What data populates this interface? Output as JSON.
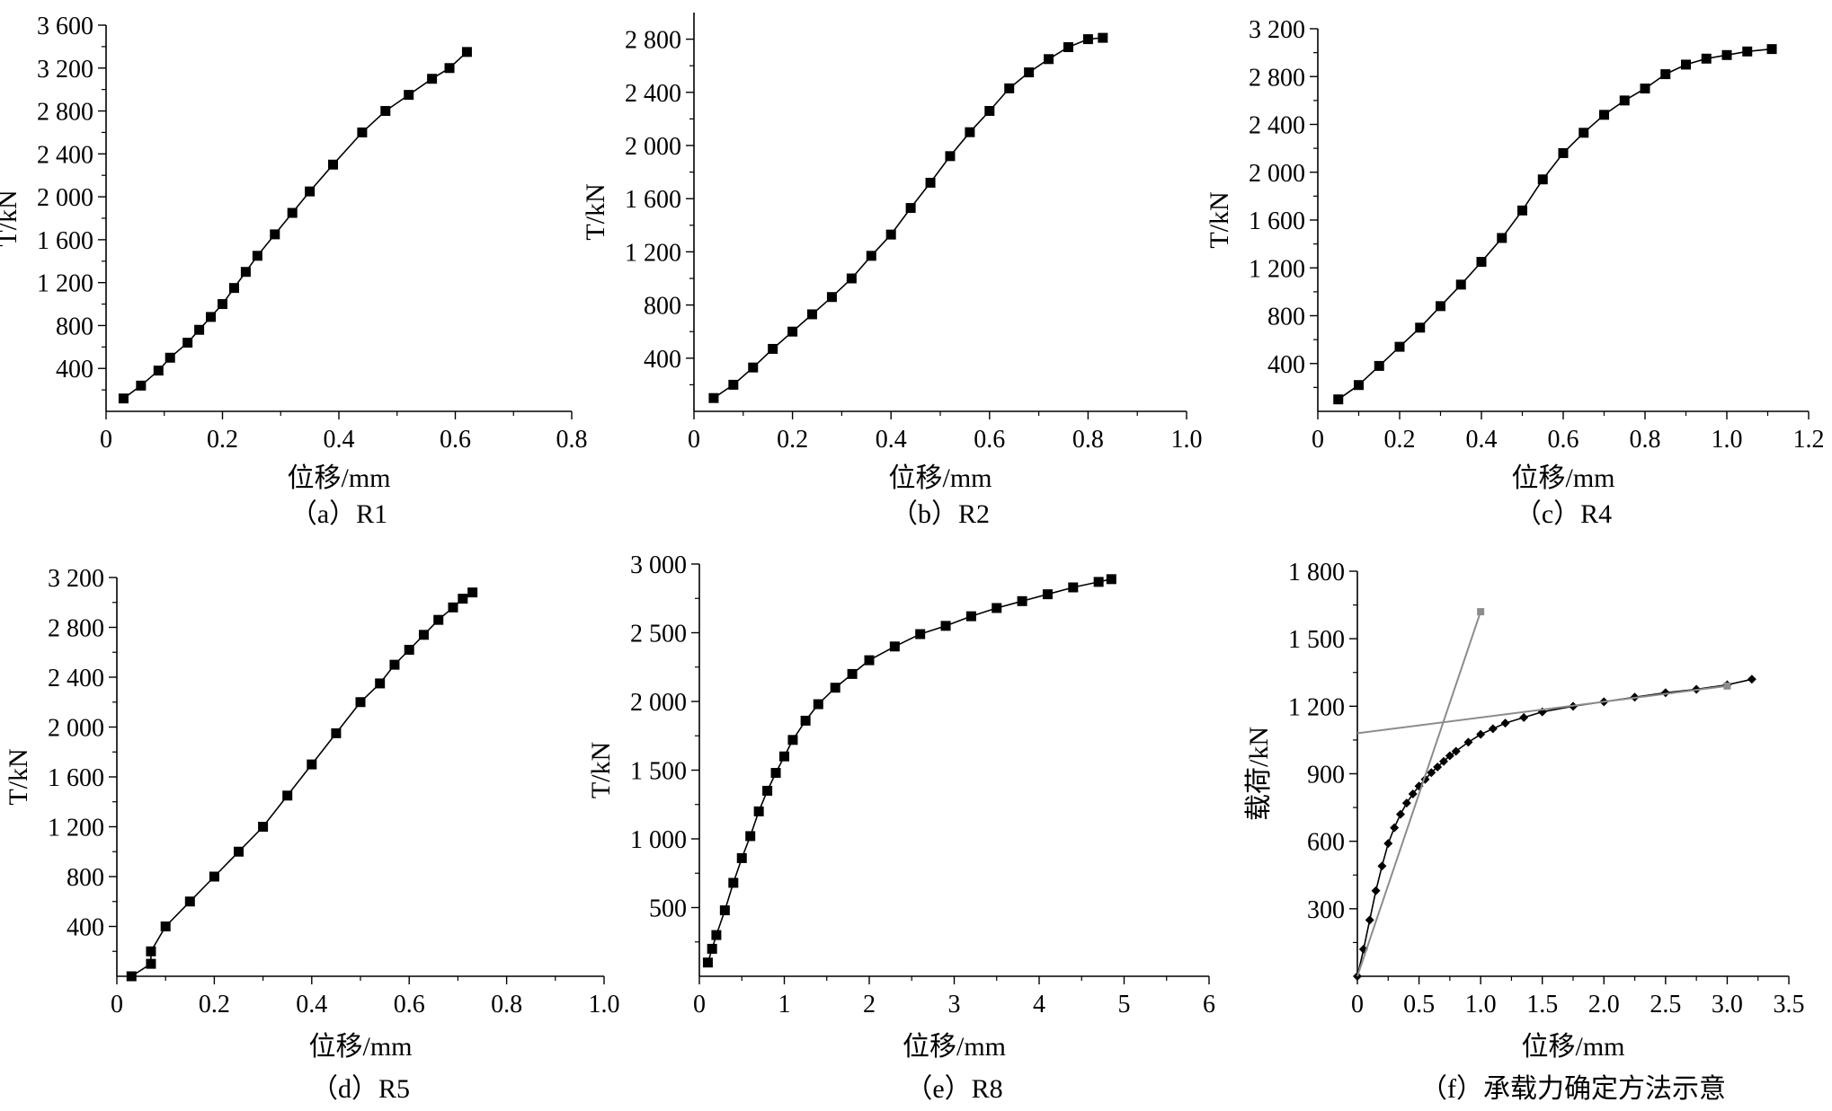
{
  "chart_data": [
    {
      "type": "line",
      "caption": "（a）R1",
      "xlabel": "位移/mm",
      "ylabel": "T/kN",
      "xlim": [
        0,
        0.8
      ],
      "ylim": [
        0,
        3600
      ],
      "xticks": [
        0,
        0.2,
        0.4,
        0.6,
        0.8
      ],
      "xtick_labels": [
        "0",
        "0.2",
        "0.4",
        "0.6",
        "0.8"
      ],
      "yticks": [
        400,
        800,
        1200,
        1600,
        2000,
        2400,
        2800,
        3200,
        3600
      ],
      "ytick_labels": [
        "400",
        "800",
        "1 200",
        "1 600",
        "2 000",
        "2 400",
        "2 800",
        "3 200",
        "3 600"
      ],
      "grid": false,
      "marker": "square",
      "series": [
        {
          "x": [
            0.03,
            0.06,
            0.09,
            0.11,
            0.14,
            0.16,
            0.18,
            0.2,
            0.22,
            0.24,
            0.26,
            0.29,
            0.32,
            0.35,
            0.39,
            0.44,
            0.48,
            0.52,
            0.56,
            0.59,
            0.62
          ],
          "y": [
            120,
            240,
            380,
            500,
            640,
            760,
            880,
            1000,
            1150,
            1300,
            1450,
            1650,
            1850,
            2050,
            2300,
            2600,
            2800,
            2950,
            3100,
            3200,
            3350
          ]
        }
      ]
    },
    {
      "type": "line",
      "caption": "（b）R2",
      "xlabel": "位移/mm",
      "ylabel": "T/kN",
      "xlim": [
        0,
        1.0
      ],
      "ylim": [
        0,
        3000
      ],
      "xticks": [
        0,
        0.2,
        0.4,
        0.6,
        0.8,
        1.0
      ],
      "xtick_labels": [
        "0",
        "0.2",
        "0.4",
        "0.6",
        "0.8",
        "1.0"
      ],
      "yticks": [
        400,
        800,
        1200,
        1600,
        2000,
        2400,
        2800
      ],
      "ytick_labels": [
        "400",
        "800",
        "1 200",
        "1 600",
        "2 000",
        "2 400",
        "2 800"
      ],
      "grid": false,
      "marker": "square",
      "series": [
        {
          "x": [
            0.04,
            0.08,
            0.12,
            0.16,
            0.2,
            0.24,
            0.28,
            0.32,
            0.36,
            0.4,
            0.44,
            0.48,
            0.52,
            0.56,
            0.6,
            0.64,
            0.68,
            0.72,
            0.76,
            0.8,
            0.83
          ],
          "y": [
            100,
            200,
            330,
            470,
            600,
            730,
            860,
            1000,
            1170,
            1330,
            1530,
            1720,
            1920,
            2100,
            2260,
            2430,
            2550,
            2650,
            2740,
            2800,
            2810
          ]
        }
      ]
    },
    {
      "type": "line",
      "caption": "（c）R4",
      "xlabel": "位移/mm",
      "ylabel": "T/kN",
      "xlim": [
        0,
        1.2
      ],
      "ylim": [
        0,
        3200
      ],
      "xticks": [
        0,
        0.2,
        0.4,
        0.6,
        0.8,
        1.0,
        1.2
      ],
      "xtick_labels": [
        "0",
        "0.2",
        "0.4",
        "0.6",
        "0.8",
        "1.0",
        "1.2"
      ],
      "yticks": [
        400,
        800,
        1200,
        1600,
        2000,
        2400,
        2800,
        3200
      ],
      "ytick_labels": [
        "400",
        "800",
        "1 200",
        "1 600",
        "2 000",
        "2 400",
        "2 800",
        "3 200"
      ],
      "grid": false,
      "marker": "square",
      "series": [
        {
          "x": [
            0.05,
            0.1,
            0.15,
            0.2,
            0.25,
            0.3,
            0.35,
            0.4,
            0.45,
            0.5,
            0.55,
            0.6,
            0.65,
            0.7,
            0.75,
            0.8,
            0.85,
            0.9,
            0.95,
            1.0,
            1.05,
            1.11
          ],
          "y": [
            100,
            220,
            380,
            540,
            700,
            880,
            1060,
            1250,
            1450,
            1680,
            1940,
            2160,
            2330,
            2480,
            2600,
            2700,
            2820,
            2900,
            2950,
            2980,
            3010,
            3030
          ]
        }
      ]
    },
    {
      "type": "line",
      "caption": "（d）R5",
      "xlabel": "位移/mm",
      "ylabel": "T/kN",
      "xlim": [
        0,
        1.0
      ],
      "ylim": [
        0,
        3200
      ],
      "xticks": [
        0,
        0.2,
        0.4,
        0.6,
        0.8,
        1.0
      ],
      "xtick_labels": [
        "0",
        "0.2",
        "0.4",
        "0.6",
        "0.8",
        "1.0"
      ],
      "yticks": [
        400,
        800,
        1200,
        1600,
        2000,
        2400,
        2800,
        3200
      ],
      "ytick_labels": [
        "400",
        "800",
        "1 200",
        "1 600",
        "2 000",
        "2 400",
        "2 800",
        "3 200"
      ],
      "grid": false,
      "marker": "square",
      "series": [
        {
          "x": [
            0.03,
            0.07,
            0.07,
            0.1,
            0.15,
            0.2,
            0.25,
            0.3,
            0.35,
            0.4,
            0.45,
            0.5,
            0.54,
            0.57,
            0.6,
            0.63,
            0.66,
            0.69,
            0.71,
            0.73
          ],
          "y": [
            0,
            100,
            200,
            400,
            600,
            800,
            1000,
            1200,
            1450,
            1700,
            1950,
            2200,
            2350,
            2500,
            2620,
            2740,
            2860,
            2960,
            3030,
            3080
          ]
        }
      ]
    },
    {
      "type": "line",
      "caption": "（e）R8",
      "xlabel": "位移/mm",
      "ylabel": "T/kN",
      "xlim": [
        0,
        6
      ],
      "ylim": [
        0,
        3000
      ],
      "xticks": [
        0,
        1,
        2,
        3,
        4,
        5,
        6
      ],
      "xtick_labels": [
        "0",
        "1",
        "2",
        "3",
        "4",
        "5",
        "6"
      ],
      "yticks": [
        500,
        1000,
        1500,
        2000,
        2500,
        3000
      ],
      "ytick_labels": [
        "500",
        "1 000",
        "1 500",
        "2 000",
        "2 500",
        "3 000"
      ],
      "grid": false,
      "marker": "square",
      "series": [
        {
          "x": [
            0.1,
            0.15,
            0.2,
            0.3,
            0.4,
            0.5,
            0.6,
            0.7,
            0.8,
            0.9,
            1.0,
            1.1,
            1.25,
            1.4,
            1.6,
            1.8,
            2.0,
            2.3,
            2.6,
            2.9,
            3.2,
            3.5,
            3.8,
            4.1,
            4.4,
            4.7,
            4.85
          ],
          "y": [
            100,
            200,
            300,
            480,
            680,
            860,
            1020,
            1200,
            1350,
            1480,
            1600,
            1720,
            1860,
            1980,
            2100,
            2200,
            2300,
            2400,
            2490,
            2550,
            2620,
            2680,
            2730,
            2780,
            2830,
            2870,
            2890
          ]
        }
      ]
    },
    {
      "type": "line",
      "caption": "（f）承载力确定方法示意",
      "xlabel": "位移/mm",
      "ylabel": "载荷/kN",
      "xlim": [
        0,
        3.5
      ],
      "ylim": [
        0,
        1800
      ],
      "xticks": [
        0,
        0.5,
        1.0,
        1.5,
        2.0,
        2.5,
        3.0,
        3.5
      ],
      "xtick_labels": [
        "0",
        "0.5",
        "1.0",
        "1.5",
        "2.0",
        "2.5",
        "3.0",
        "3.5"
      ],
      "yticks": [
        300,
        600,
        900,
        1200,
        1500,
        1800
      ],
      "ytick_labels": [
        "300",
        "600",
        "900",
        "1 200",
        "1 500",
        "1 800"
      ],
      "grid": false,
      "marker": "diamond",
      "series": [
        {
          "x": [
            0,
            0.05,
            0.1,
            0.15,
            0.2,
            0.25,
            0.3,
            0.35,
            0.4,
            0.45,
            0.5,
            0.55,
            0.6,
            0.65,
            0.7,
            0.75,
            0.8,
            0.9,
            1.0,
            1.1,
            1.2,
            1.35,
            1.5,
            1.75,
            2.0,
            2.25,
            2.5,
            2.75,
            3.0,
            3.2
          ],
          "y": [
            0,
            120,
            250,
            380,
            490,
            590,
            660,
            720,
            770,
            810,
            845,
            875,
            905,
            930,
            955,
            980,
            1000,
            1040,
            1075,
            1100,
            1125,
            1150,
            1175,
            1200,
            1220,
            1240,
            1260,
            1275,
            1295,
            1320
          ]
        },
        {
          "color": "#8c8c8c",
          "line_only": true,
          "x": [
            0,
            1.0
          ],
          "y": [
            0,
            1620
          ]
        },
        {
          "color": "#8c8c8c",
          "line_only": true,
          "x": [
            0,
            3.0
          ],
          "y": [
            1080,
            1290
          ]
        }
      ]
    }
  ]
}
